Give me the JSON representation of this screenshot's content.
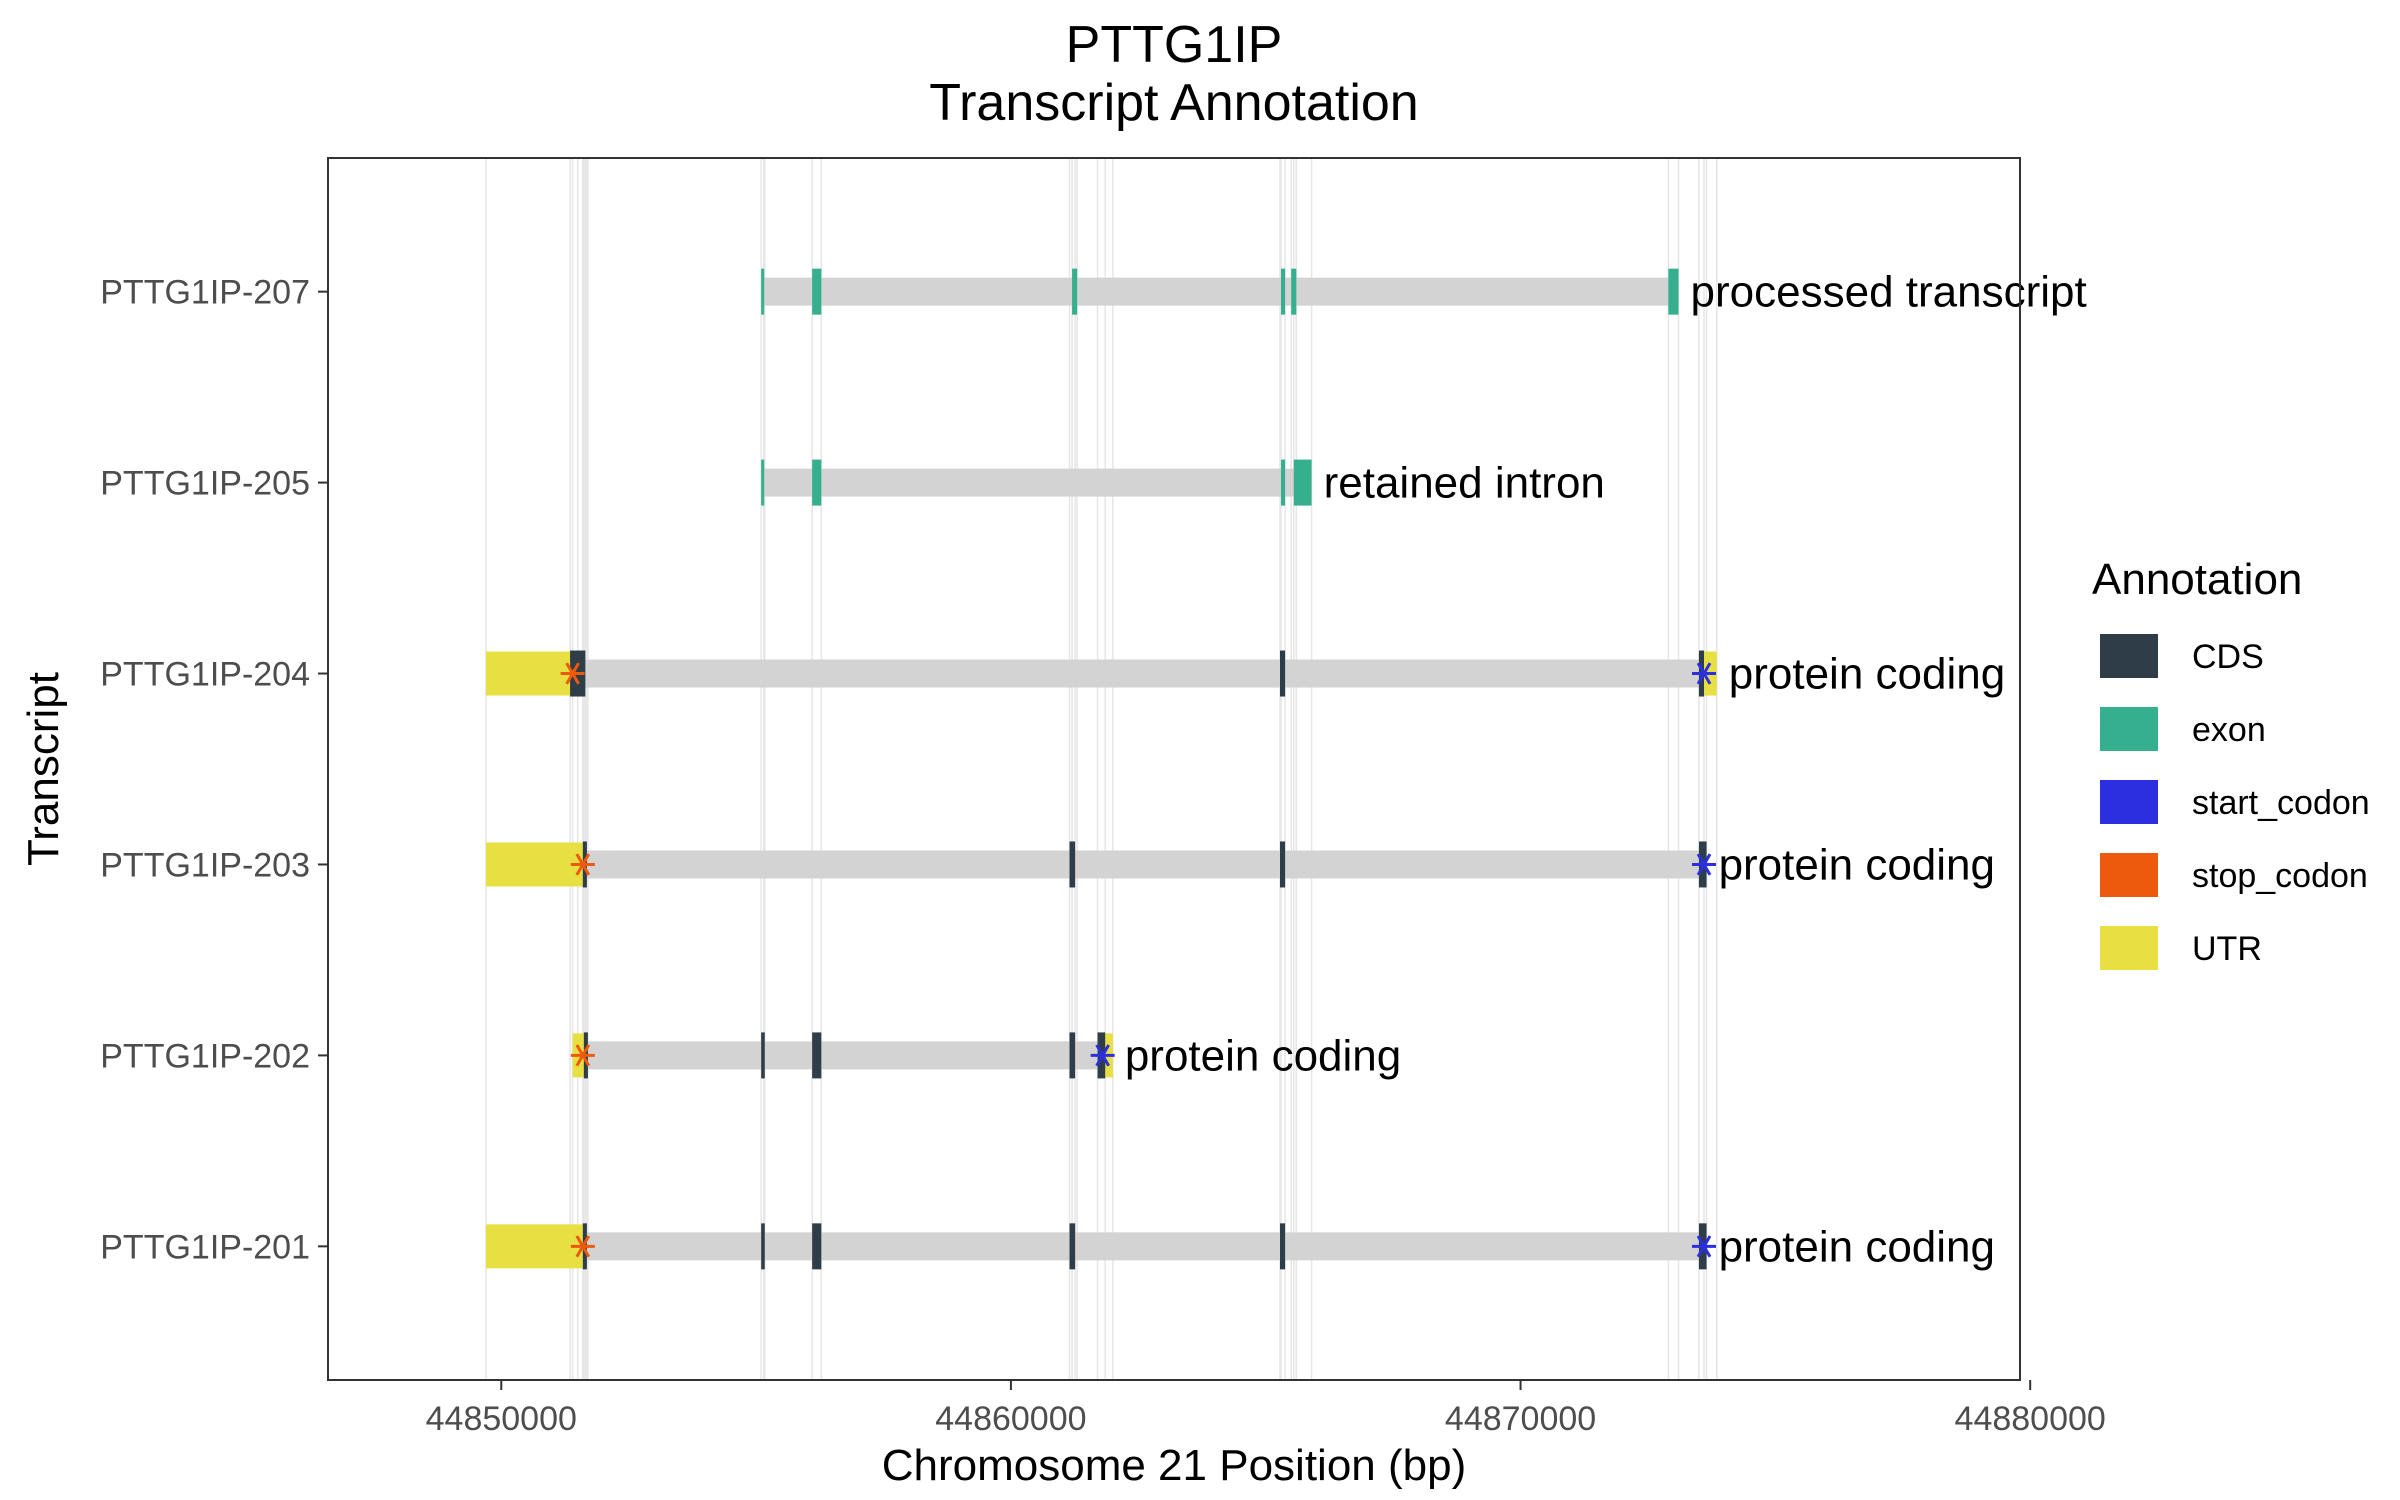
{
  "chart_data": {
    "type": "gene-model",
    "title": "PTTG1IP",
    "subtitle": "Transcript Annotation",
    "xlabel": "Chromosome 21 Position (bp)",
    "ylabel": "Transcript",
    "xlim": [
      44846600,
      44879800
    ],
    "x_ticks": [
      44850000,
      44860000,
      44870000,
      44880000
    ],
    "x_tick_labels": [
      "44850000",
      "44860000",
      "44870000",
      "44880000"
    ],
    "grid": "vertical lines at feature boundaries",
    "legend": {
      "title": "Annotation",
      "placement": "right",
      "items": [
        {
          "label": "CDS",
          "color": "#2E3D47"
        },
        {
          "label": "exon",
          "color": "#35AF8E"
        },
        {
          "label": "start_codon",
          "color": "#2C2FE0"
        },
        {
          "label": "stop_codon",
          "color": "#EE5A0D"
        },
        {
          "label": "UTR",
          "color": "#E8E043"
        }
      ]
    },
    "colors": {
      "intron": "#D3D3D3",
      "CDS": "#2E3D47",
      "exon": "#35AF8E",
      "start_codon": "#2C2FE0",
      "stop_codon": "#EE5A0D",
      "UTR": "#E8E043",
      "grid": "#E6E6E6",
      "panel_border": "#333333"
    },
    "transcripts": [
      {
        "name": "PTTG1IP-207",
        "biotype": "processed transcript",
        "span": [
          44855100,
          44873100
        ],
        "features": [
          {
            "type": "exon",
            "start": 44855100,
            "end": 44855150
          },
          {
            "type": "exon",
            "start": 44856100,
            "end": 44856280
          },
          {
            "type": "exon",
            "start": 44861200,
            "end": 44861300
          },
          {
            "type": "exon",
            "start": 44865300,
            "end": 44865380
          },
          {
            "type": "exon",
            "start": 44865500,
            "end": 44865600
          },
          {
            "type": "exon",
            "start": 44872900,
            "end": 44873100
          }
        ],
        "start_codons": [],
        "stop_codons": []
      },
      {
        "name": "PTTG1IP-205",
        "biotype": "retained intron",
        "span": [
          44855100,
          44865900
        ],
        "features": [
          {
            "type": "exon",
            "start": 44855100,
            "end": 44855150
          },
          {
            "type": "exon",
            "start": 44856100,
            "end": 44856280
          },
          {
            "type": "exon",
            "start": 44865300,
            "end": 44865380
          },
          {
            "type": "exon",
            "start": 44865550,
            "end": 44865900
          }
        ],
        "start_codons": [],
        "stop_codons": []
      },
      {
        "name": "PTTG1IP-204",
        "biotype": "protein coding",
        "span": [
          44849700,
          44873850
        ],
        "features": [
          {
            "type": "UTR",
            "start": 44849700,
            "end": 44851500
          },
          {
            "type": "CDS",
            "start": 44851350,
            "end": 44851650
          },
          {
            "type": "CDS",
            "start": 44865280,
            "end": 44865380
          },
          {
            "type": "CDS",
            "start": 44873500,
            "end": 44873600
          },
          {
            "type": "UTR",
            "start": 44873600,
            "end": 44873850
          }
        ],
        "start_codons": [
          44873600
        ],
        "stop_codons": [
          44851400
        ]
      },
      {
        "name": "PTTG1IP-203",
        "biotype": "protein coding",
        "span": [
          44849700,
          44873650
        ],
        "features": [
          {
            "type": "UTR",
            "start": 44849700,
            "end": 44851600
          },
          {
            "type": "CDS",
            "start": 44851600,
            "end": 44851680
          },
          {
            "type": "CDS",
            "start": 44861150,
            "end": 44861260
          },
          {
            "type": "CDS",
            "start": 44865280,
            "end": 44865380
          },
          {
            "type": "CDS",
            "start": 44873500,
            "end": 44873650
          }
        ],
        "start_codons": [
          44873600
        ],
        "stop_codons": [
          44851600
        ]
      },
      {
        "name": "PTTG1IP-202",
        "biotype": "protein coding",
        "span": [
          44851400,
          44862000
        ],
        "features": [
          {
            "type": "UTR",
            "start": 44851400,
            "end": 44851620
          },
          {
            "type": "CDS",
            "start": 44851620,
            "end": 44851700
          },
          {
            "type": "CDS",
            "start": 44855100,
            "end": 44855170
          },
          {
            "type": "CDS",
            "start": 44856100,
            "end": 44856280
          },
          {
            "type": "CDS",
            "start": 44861150,
            "end": 44861260
          },
          {
            "type": "CDS",
            "start": 44861700,
            "end": 44861850
          },
          {
            "type": "UTR",
            "start": 44861850,
            "end": 44862000
          }
        ],
        "start_codons": [
          44861800
        ],
        "stop_codons": [
          44851600
        ]
      },
      {
        "name": "PTTG1IP-201",
        "biotype": "protein coding",
        "span": [
          44849700,
          44873650
        ],
        "features": [
          {
            "type": "UTR",
            "start": 44849700,
            "end": 44851600
          },
          {
            "type": "CDS",
            "start": 44851600,
            "end": 44851680
          },
          {
            "type": "CDS",
            "start": 44855100,
            "end": 44855170
          },
          {
            "type": "CDS",
            "start": 44856100,
            "end": 44856280
          },
          {
            "type": "CDS",
            "start": 44861150,
            "end": 44861260
          },
          {
            "type": "CDS",
            "start": 44865280,
            "end": 44865380
          },
          {
            "type": "CDS",
            "start": 44873500,
            "end": 44873650
          }
        ],
        "start_codons": [
          44873600
        ],
        "stop_codons": [
          44851600
        ]
      }
    ]
  }
}
